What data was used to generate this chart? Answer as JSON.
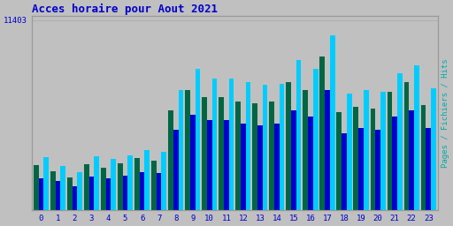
{
  "title": "Acces horaire pour Aout 2021",
  "title_color": "#0000cc",
  "title_fontsize": 9,
  "ylabel_right": "Pages / Fichiers / Hits",
  "bg_color": "#c0c0c0",
  "plot_bg_color": "#c0c0c0",
  "hours": [
    0,
    1,
    2,
    3,
    4,
    5,
    6,
    7,
    8,
    9,
    10,
    11,
    12,
    13,
    14,
    15,
    16,
    17,
    18,
    19,
    20,
    21,
    22,
    23
  ],
  "hits": [
    3200,
    2650,
    2300,
    3250,
    3050,
    3300,
    3600,
    3500,
    7200,
    8500,
    7900,
    7900,
    7700,
    7500,
    7600,
    9000,
    8500,
    10500,
    7000,
    7200,
    7100,
    8200,
    8700,
    7300
  ],
  "fichiers": [
    1900,
    1750,
    1450,
    2000,
    1900,
    2050,
    2300,
    2200,
    4800,
    5700,
    5400,
    5400,
    5200,
    5100,
    5200,
    6000,
    5600,
    7200,
    4600,
    4900,
    4800,
    5600,
    6000,
    4900
  ],
  "pages": [
    2700,
    2350,
    1980,
    2750,
    2550,
    2800,
    3100,
    2950,
    6000,
    7200,
    6800,
    6800,
    6500,
    6400,
    6500,
    7700,
    7200,
    9200,
    5900,
    6200,
    6100,
    7100,
    7700,
    6300
  ],
  "color_hits": "#00ccff",
  "color_fichiers": "#0000cc",
  "color_pages": "#006644",
  "bar_width": 0.3,
  "grid_color": "#b0b0b0",
  "tick_color": "#0000cc",
  "axis_label_color": "#00aaaa",
  "font_family": "monospace",
  "ytick_label": "11403",
  "ymax": 11403
}
